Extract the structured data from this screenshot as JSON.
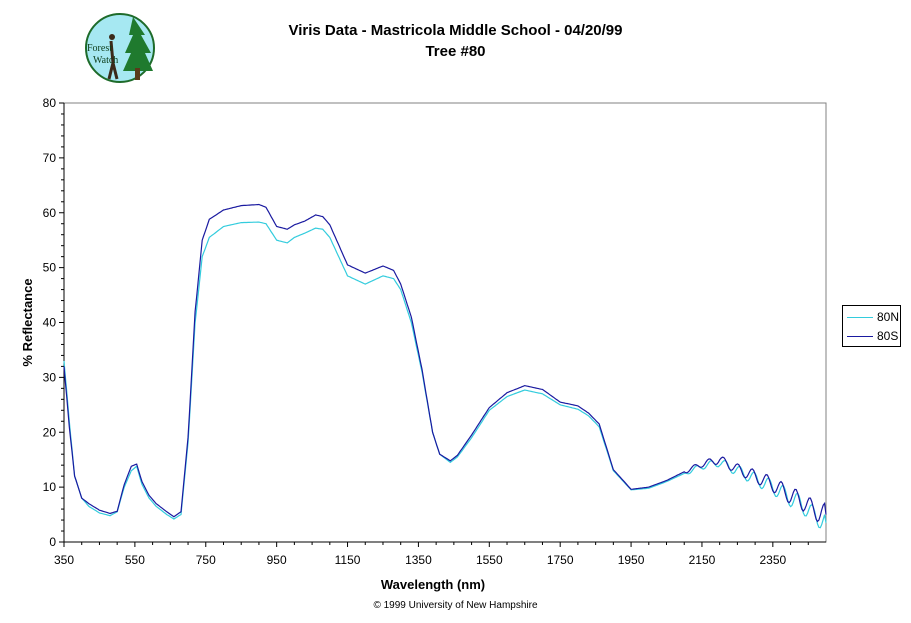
{
  "header": {
    "title": "Viris Data - Mastricola Middle School - 04/20/99",
    "subtitle": "Tree #80"
  },
  "logo": {
    "text_line1": "Forest",
    "text_line2": "Watch"
  },
  "footer": {
    "copyright": "© 1999 University of New Hampshire"
  },
  "colors": {
    "series_80N": "#33ccdd",
    "series_80S": "#1a1aa0",
    "axis": "#000000"
  },
  "chart_data": {
    "type": "line",
    "xlabel": "Wavelength (nm)",
    "ylabel": "% Reflectance",
    "xlim": [
      350,
      2500
    ],
    "ylim": [
      0,
      80
    ],
    "x_ticks": [
      350,
      550,
      750,
      950,
      1150,
      1350,
      1550,
      1750,
      1950,
      2150,
      2350
    ],
    "y_ticks": [
      0,
      10,
      20,
      30,
      40,
      50,
      60,
      70,
      80
    ],
    "grid": false,
    "legend_position": "right",
    "series": [
      {
        "name": "80N",
        "color": "#33ccdd",
        "x": [
          350,
          365,
          380,
          400,
          420,
          450,
          480,
          500,
          520,
          540,
          555,
          570,
          590,
          610,
          640,
          660,
          680,
          700,
          720,
          740,
          760,
          800,
          850,
          900,
          920,
          950,
          980,
          1000,
          1030,
          1060,
          1080,
          1100,
          1150,
          1200,
          1250,
          1280,
          1300,
          1330,
          1360,
          1390,
          1410,
          1440,
          1460,
          1500,
          1550,
          1600,
          1650,
          1700,
          1750,
          1800,
          1830,
          1860,
          1900,
          1950,
          2000,
          2050,
          2100,
          2150,
          2200,
          2250,
          2300,
          2350,
          2400,
          2440,
          2460,
          2480,
          2500
        ],
        "y": [
          33,
          22,
          12,
          8,
          6.5,
          5.3,
          4.8,
          5.5,
          10,
          13,
          13.8,
          10.5,
          8,
          6.5,
          5,
          4.2,
          5,
          18,
          40,
          52,
          55.5,
          57.5,
          58.2,
          58.3,
          58,
          55,
          54.5,
          55.5,
          56.3,
          57.2,
          57,
          55.5,
          48.5,
          47,
          48.5,
          48,
          46,
          40,
          31,
          20,
          16,
          14.5,
          15.5,
          19,
          24,
          26.5,
          27.7,
          27,
          25,
          24.2,
          23,
          21,
          13,
          9.5,
          9.8,
          11,
          12.5,
          13.8,
          14.5,
          13,
          11.5,
          10,
          8,
          6.5,
          5,
          4.5,
          3.5
        ]
      },
      {
        "name": "80S",
        "color": "#1a1aa0",
        "x": [
          350,
          365,
          380,
          400,
          420,
          450,
          480,
          500,
          520,
          540,
          555,
          570,
          590,
          610,
          640,
          660,
          680,
          700,
          720,
          740,
          760,
          800,
          850,
          900,
          920,
          950,
          980,
          1000,
          1030,
          1060,
          1080,
          1100,
          1150,
          1200,
          1250,
          1280,
          1300,
          1330,
          1360,
          1390,
          1410,
          1440,
          1460,
          1500,
          1550,
          1600,
          1650,
          1700,
          1750,
          1800,
          1830,
          1860,
          1900,
          1950,
          2000,
          2050,
          2100,
          2150,
          2200,
          2250,
          2300,
          2350,
          2400,
          2440,
          2460,
          2480,
          2500
        ],
        "y": [
          32,
          21,
          12,
          8,
          7,
          5.8,
          5.2,
          5.6,
          10.5,
          13.8,
          14.2,
          11,
          8.5,
          7,
          5.5,
          4.6,
          5.5,
          19,
          42,
          55,
          58.8,
          60.5,
          61.3,
          61.5,
          61,
          57.5,
          57,
          57.8,
          58.5,
          59.6,
          59.3,
          57.8,
          50.5,
          49,
          50.3,
          49.5,
          47,
          41,
          31.5,
          20,
          16,
          14.8,
          15.8,
          19.5,
          24.5,
          27.2,
          28.5,
          27.8,
          25.5,
          24.8,
          23.5,
          21.5,
          13.2,
          9.6,
          10,
          11.2,
          12.8,
          14.2,
          15,
          13.3,
          12,
          10.5,
          8.5,
          7.2,
          6,
          5.5,
          5
        ]
      }
    ]
  }
}
